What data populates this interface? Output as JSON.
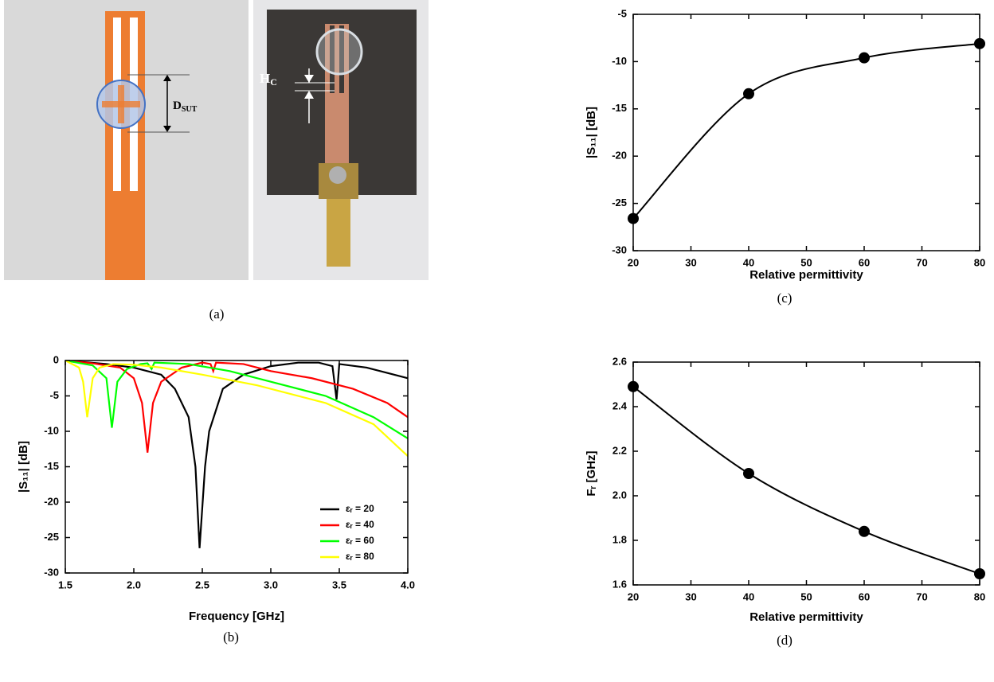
{
  "figure_a": {
    "caption": "(a)",
    "labels": [
      {
        "text": "D",
        "subscript": "SUT"
      },
      {
        "text": "H",
        "subscript": "C"
      }
    ]
  },
  "chart_data": [
    {
      "type": "line",
      "caption": "(b)",
      "xlabel": "Frequency [GHz]",
      "ylabel": "|S₁₁| [dB]",
      "xlim": [
        1.5,
        4.0
      ],
      "ylim": [
        -30,
        0
      ],
      "xticks": [
        1.5,
        {
          "value": 2,
          "label": "2.0"
        },
        2.5,
        {
          "value": 3,
          "label": "3.0"
        },
        3.5,
        {
          "value": 4,
          "label": "4.0"
        }
      ],
      "yticks": [
        0,
        -5,
        -10,
        -15,
        -20,
        -25,
        -30
      ],
      "legend": "lower right",
      "series": [
        {
          "name": "εᵣ = 20",
          "color": "#000000",
          "x": [
            1.5,
            1.8,
            2.0,
            2.2,
            2.3,
            2.4,
            2.45,
            2.48,
            2.52,
            2.55,
            2.65,
            2.8,
            3.0,
            3.2,
            3.35,
            3.45,
            3.48,
            3.5,
            3.7,
            3.9,
            4.0
          ],
          "values": [
            0,
            -0.5,
            -1,
            -2,
            -4,
            -8,
            -15,
            -26.5,
            -15,
            -10,
            -4,
            -2,
            -0.8,
            -0.3,
            -0.3,
            -0.8,
            -5.5,
            -0.5,
            -1,
            -2,
            -2.5
          ]
        },
        {
          "name": "εᵣ = 40",
          "color": "#ff0000",
          "x": [
            1.5,
            1.7,
            1.9,
            2.0,
            2.06,
            2.1,
            2.14,
            2.2,
            2.35,
            2.5,
            2.56,
            2.58,
            2.6,
            2.8,
            3.0,
            3.3,
            3.6,
            3.85,
            4.0
          ],
          "values": [
            0,
            -0.4,
            -1,
            -2.5,
            -6,
            -13,
            -6,
            -3,
            -1,
            -0.3,
            -0.5,
            -1.5,
            -0.3,
            -0.5,
            -1.5,
            -2.5,
            -4,
            -6,
            -8
          ]
        },
        {
          "name": "εᵣ = 60",
          "color": "#00ff00",
          "x": [
            1.5,
            1.7,
            1.8,
            1.84,
            1.88,
            1.95,
            2.05,
            2.1,
            2.13,
            2.15,
            2.4,
            2.7,
            3.0,
            3.4,
            3.75,
            4.0
          ],
          "values": [
            0,
            -0.7,
            -2.5,
            -9.5,
            -3,
            -1.2,
            -0.5,
            -0.4,
            -1.2,
            -0.3,
            -0.5,
            -1.5,
            -3,
            -5,
            -8,
            -11
          ]
        },
        {
          "name": "εᵣ = 80",
          "color": "#ffff00",
          "x": [
            1.5,
            1.6,
            1.63,
            1.66,
            1.7,
            1.75,
            1.85,
            2.0,
            2.2,
            2.5,
            2.9,
            3.4,
            3.75,
            4.0
          ],
          "values": [
            0,
            -1,
            -3,
            -8,
            -2.5,
            -1,
            -0.5,
            -0.6,
            -1,
            -2,
            -3.5,
            -6,
            -9,
            -13.5
          ]
        }
      ]
    },
    {
      "type": "scatter",
      "caption": "(c)",
      "xlabel": "Relative permittivity",
      "ylabel": "|S₁₁| [dB]",
      "fit_curve": true,
      "xlim": [
        20,
        80
      ],
      "ylim": [
        -30,
        -5
      ],
      "xticks": [
        20,
        30,
        40,
        50,
        60,
        70,
        80
      ],
      "yticks": [
        -30,
        -25,
        -20,
        -15,
        -10,
        -5
      ],
      "color": "#000000",
      "x": [
        20,
        40,
        60,
        80
      ],
      "values": [
        -26.6,
        -13.4,
        -9.6,
        -8.1
      ]
    },
    {
      "type": "scatter",
      "caption": "(d)",
      "xlabel": "Relative permittivity",
      "ylabel": "Fᵣ [GHz]",
      "fit_curve": true,
      "xlim": [
        20,
        80
      ],
      "ylim": [
        1.6,
        2.6
      ],
      "xticks": [
        20,
        30,
        40,
        50,
        60,
        70,
        80
      ],
      "yticks": [
        1.6,
        1.8,
        {
          "value": 2,
          "label": "2.0"
        },
        2.2,
        2.4,
        2.6
      ],
      "color": "#000000",
      "x": [
        20,
        40,
        60,
        80
      ],
      "values": [
        2.49,
        2.1,
        1.84,
        1.65
      ]
    }
  ]
}
